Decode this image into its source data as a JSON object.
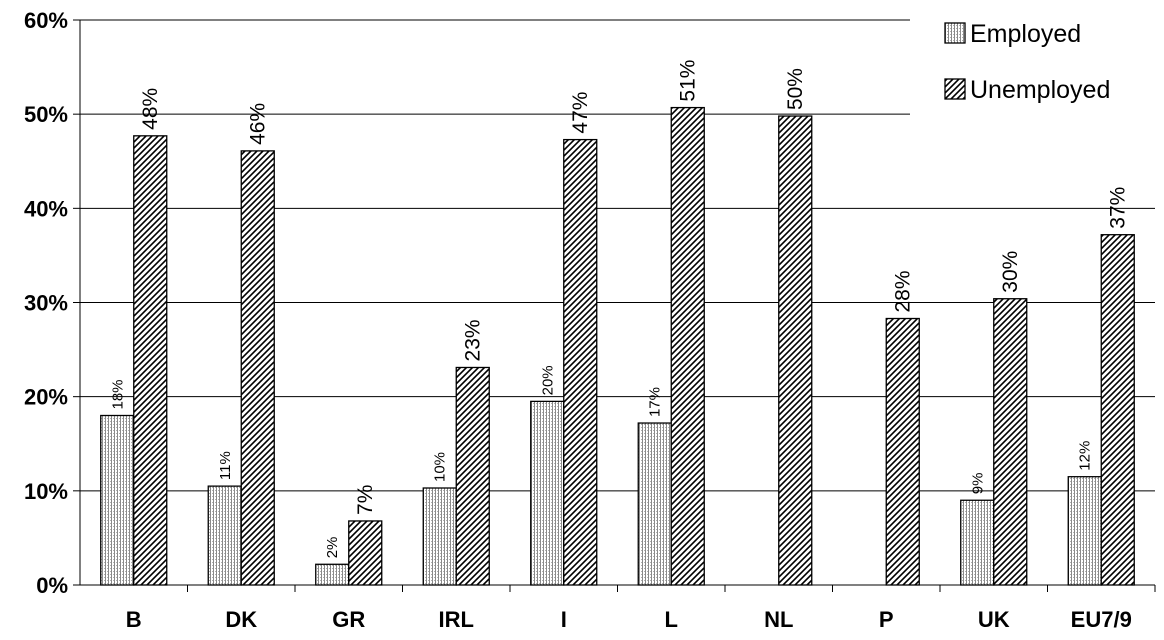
{
  "chart_data": {
    "type": "bar",
    "categories": [
      "B",
      "DK",
      "GR",
      "IRL",
      "I",
      "L",
      "NL",
      "P",
      "UK",
      "EU7/9"
    ],
    "series": [
      {
        "name": "Employed",
        "values": [
          0.18,
          0.105,
          0.022,
          0.103,
          0.195,
          0.172,
          null,
          null,
          0.09,
          0.115
        ],
        "labels": [
          "18%",
          "11%",
          "2%",
          "10%",
          "20%",
          "17%",
          "",
          "",
          "9%",
          "12%"
        ]
      },
      {
        "name": "Unemployed",
        "values": [
          0.477,
          0.461,
          0.068,
          0.231,
          0.473,
          0.507,
          0.498,
          0.283,
          0.304,
          0.372
        ],
        "labels": [
          "48%",
          "46%",
          "7%",
          "23%",
          "47%",
          "51%",
          "50%",
          "28%",
          "30%",
          "37%"
        ]
      }
    ],
    "yticks": [
      "0%",
      "10%",
      "20%",
      "30%",
      "40%",
      "50%",
      "60%"
    ],
    "ylim": [
      0,
      0.6
    ],
    "grid": true,
    "legend": "top-right",
    "title": "",
    "xlabel": "",
    "ylabel": ""
  }
}
